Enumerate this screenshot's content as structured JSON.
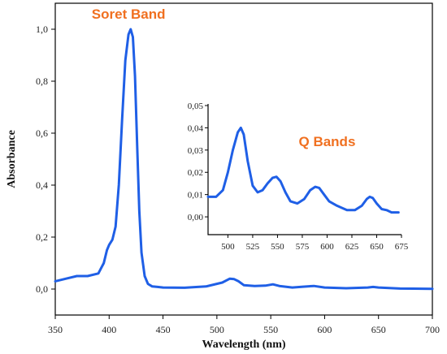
{
  "chart_data": [
    {
      "type": "line",
      "xlabel": "Wavelength (nm)",
      "ylabel": "Absorbance",
      "xlim": [
        350,
        700
      ],
      "ylim": [
        -0.1,
        1.1
      ],
      "x_ticks": [
        350,
        400,
        450,
        500,
        550,
        600,
        650,
        700
      ],
      "x_tick_labels": [
        "350",
        "400",
        "450",
        "500",
        "550",
        "600",
        "650",
        "700"
      ],
      "y_ticks": [
        0,
        0.2,
        0.4,
        0.6,
        0.8,
        1.0
      ],
      "y_tick_labels": [
        "0,0",
        "0,2",
        "0,4",
        "0,6",
        "0,8",
        "1,0"
      ],
      "annotations": [
        {
          "text": "Soret Band",
          "x": 418,
          "y": 1.06
        }
      ],
      "series": [
        {
          "color": "#1f5fe6",
          "x": [
            350,
            360,
            370,
            380,
            390,
            395,
            398,
            400,
            403,
            406,
            409,
            412,
            415,
            418,
            420,
            422,
            424,
            426,
            428,
            430,
            433,
            436,
            440,
            445,
            450,
            470,
            490,
            505,
            512,
            516,
            520,
            525,
            535,
            545,
            552,
            558,
            570,
            580,
            590,
            600,
            620,
            640,
            645,
            650,
            670,
            700
          ],
          "y": [
            0.03,
            0.04,
            0.05,
            0.05,
            0.06,
            0.1,
            0.15,
            0.17,
            0.19,
            0.24,
            0.4,
            0.65,
            0.88,
            0.98,
            1.0,
            0.97,
            0.82,
            0.55,
            0.3,
            0.14,
            0.05,
            0.02,
            0.01,
            0.008,
            0.006,
            0.005,
            0.01,
            0.025,
            0.04,
            0.038,
            0.03,
            0.015,
            0.012,
            0.013,
            0.018,
            0.012,
            0.006,
            0.009,
            0.012,
            0.006,
            0.003,
            0.006,
            0.008,
            0.006,
            0.002,
            0.001
          ]
        }
      ]
    },
    {
      "type": "line",
      "xlim": [
        480,
        675
      ],
      "ylim": [
        -0.008,
        0.05
      ],
      "x_ticks": [
        500,
        525,
        550,
        575,
        600,
        625,
        650,
        675
      ],
      "x_tick_labels": [
        "500",
        "525",
        "550",
        "575",
        "600",
        "625",
        "650",
        "675"
      ],
      "y_ticks": [
        0,
        0.01,
        0.02,
        0.03,
        0.04,
        0.05
      ],
      "y_tick_labels": [
        "0,00",
        "0,01",
        "0,02",
        "0,03",
        "0,04",
        "0,05"
      ],
      "annotations": [
        {
          "text": "Q Bands",
          "x": 600,
          "y": 0.034
        }
      ],
      "series": [
        {
          "color": "#1f5fe6",
          "x": [
            480,
            488,
            495,
            500,
            505,
            510,
            513,
            516,
            520,
            525,
            530,
            535,
            540,
            545,
            549,
            553,
            558,
            563,
            570,
            577,
            583,
            588,
            592,
            597,
            602,
            610,
            620,
            628,
            635,
            640,
            643,
            646,
            650,
            655,
            660,
            665,
            672
          ],
          "y": [
            0.009,
            0.009,
            0.012,
            0.02,
            0.03,
            0.038,
            0.04,
            0.037,
            0.025,
            0.014,
            0.011,
            0.012,
            0.015,
            0.0175,
            0.018,
            0.016,
            0.011,
            0.007,
            0.006,
            0.008,
            0.012,
            0.0135,
            0.013,
            0.01,
            0.007,
            0.005,
            0.003,
            0.003,
            0.005,
            0.008,
            0.009,
            0.0085,
            0.006,
            0.0035,
            0.003,
            0.002,
            0.002
          ]
        }
      ]
    }
  ],
  "colors": {
    "line": "#1f5fe6",
    "annotation": "#f07020",
    "axis": "#000000"
  }
}
